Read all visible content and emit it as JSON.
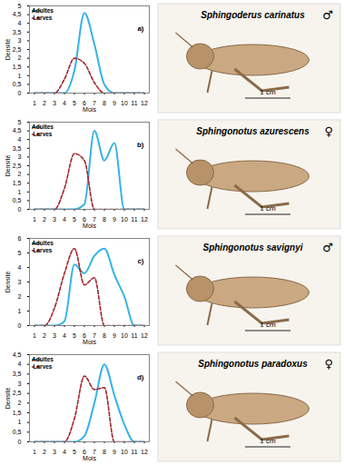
{
  "chart_data": [
    {
      "type": "line",
      "title": "a)",
      "x_label": "Mois",
      "y_label": "Densité",
      "x": [
        1,
        2,
        3,
        4,
        5,
        6,
        7,
        8,
        9,
        10,
        11,
        12
      ],
      "xlim": [
        0.5,
        12.5
      ],
      "xticks": [
        1,
        2,
        3,
        4,
        5,
        6,
        7,
        8,
        9,
        10,
        11,
        12
      ],
      "ylim": [
        0,
        5
      ],
      "yticks": [
        0,
        {
          "value": 0.5,
          "label": "0,5"
        },
        1,
        {
          "value": 1.5,
          "label": "1,5"
        },
        2,
        {
          "value": 2.5,
          "label": "2,5"
        },
        3,
        {
          "value": 3.5,
          "label": "3,5"
        },
        4,
        {
          "value": 4.5,
          "label": "4,5"
        },
        5
      ],
      "legend": "top-left",
      "series": [
        {
          "name": "Adultes",
          "color": "#35b3e6",
          "line_style": "solid",
          "values": [
            0,
            0,
            0,
            0,
            1.3,
            4.6,
            2.8,
            0.5,
            0,
            0,
            0,
            0
          ]
        },
        {
          "name": "Larves",
          "color": "#a3232b",
          "line_style": "dashed",
          "values": [
            0,
            0,
            0,
            0.8,
            2,
            1.7,
            0.6,
            0,
            0,
            0,
            0,
            0
          ]
        }
      ],
      "image": {
        "species": "Sphingoderus carinatus",
        "sex": "♂",
        "scale_label": "1 cm"
      }
    },
    {
      "type": "line",
      "title": "b)",
      "x_label": "Mois",
      "y_label": "Densité",
      "x": [
        1,
        2,
        3,
        4,
        5,
        6,
        7,
        8,
        9,
        10,
        11,
        12
      ],
      "xlim": [
        0.5,
        12.5
      ],
      "xticks": [
        1,
        2,
        3,
        4,
        5,
        6,
        7,
        8,
        9,
        10,
        11,
        12
      ],
      "ylim": [
        0,
        5
      ],
      "yticks": [
        0,
        {
          "value": 0.5,
          "label": "0,5"
        },
        1,
        {
          "value": 1.5,
          "label": "1,5"
        },
        2,
        {
          "value": 2.5,
          "label": "2,5"
        },
        3,
        {
          "value": 3.5,
          "label": "3,5"
        },
        4,
        {
          "value": 4.5,
          "label": "4,5"
        },
        5
      ],
      "legend": "top-left",
      "series": [
        {
          "name": "Adultes",
          "color": "#35b3e6",
          "line_style": "solid",
          "values": [
            0,
            0,
            0,
            0,
            0,
            0.3,
            4.5,
            2.8,
            3.8,
            0,
            0,
            0
          ]
        },
        {
          "name": "Larves",
          "color": "#a3232b",
          "line_style": "dashed",
          "values": [
            0,
            0,
            0,
            1.2,
            3.2,
            2.8,
            0,
            0,
            0,
            0,
            0,
            0
          ]
        }
      ],
      "image": {
        "species": "Sphingonotus azurescens",
        "sex": "♀",
        "scale_label": "1 cm"
      }
    },
    {
      "type": "line",
      "title": "c)",
      "x_label": "Mois",
      "y_label": "Densité",
      "x": [
        1,
        2,
        3,
        4,
        5,
        6,
        7,
        8,
        9,
        10,
        11,
        12
      ],
      "xlim": [
        0.5,
        12.5
      ],
      "xticks": [
        1,
        2,
        3,
        4,
        5,
        6,
        7,
        8,
        9,
        10,
        11,
        12
      ],
      "ylim": [
        0,
        6
      ],
      "yticks": [
        0,
        1,
        2,
        3,
        4,
        5,
        6
      ],
      "legend": "top-left",
      "series": [
        {
          "name": "Adultes",
          "color": "#35b3e6",
          "line_style": "solid",
          "values": [
            0,
            0,
            0,
            0.3,
            4.2,
            3.6,
            4.8,
            5.3,
            3.5,
            2,
            0,
            0
          ]
        },
        {
          "name": "Larves",
          "color": "#a3232b",
          "line_style": "dashed",
          "values": [
            0,
            0,
            1.2,
            3.6,
            5.3,
            2.8,
            3.3,
            0,
            0,
            0,
            0,
            0
          ]
        }
      ],
      "image": {
        "species": "Sphingonotus savignyi",
        "sex": "♂",
        "scale_label": "1 cm"
      }
    },
    {
      "type": "line",
      "title": "d)",
      "x_label": "Mois",
      "y_label": "Densité",
      "x": [
        1,
        2,
        3,
        4,
        5,
        6,
        7,
        8,
        9,
        10,
        11,
        12
      ],
      "xlim": [
        0.5,
        12.5
      ],
      "xticks": [
        1,
        2,
        3,
        4,
        5,
        6,
        7,
        8,
        9,
        10,
        11,
        12
      ],
      "ylim": [
        0,
        4.5
      ],
      "yticks": [
        0,
        {
          "value": 0.5,
          "label": "0,5"
        },
        1,
        {
          "value": 1.5,
          "label": "1,5"
        },
        2,
        {
          "value": 2.5,
          "label": "2,5"
        },
        3,
        {
          "value": 3.5,
          "label": "3,5"
        },
        4,
        {
          "value": 4.5,
          "label": "4,5"
        }
      ],
      "legend": "top-left",
      "series": [
        {
          "name": "Adultes",
          "color": "#35b3e6",
          "line_style": "solid",
          "values": [
            0,
            0,
            0,
            0,
            0,
            0.3,
            2,
            4,
            2.4,
            0.9,
            0,
            0
          ]
        },
        {
          "name": "Larves",
          "color": "#a3232b",
          "line_style": "dashed",
          "values": [
            0,
            0,
            0,
            0,
            1.2,
            3.4,
            2.7,
            2.8,
            0,
            0,
            0,
            0
          ]
        }
      ],
      "image": {
        "species": "Sphingonotus paradoxus",
        "sex": "♀",
        "scale_label": "1 cm"
      }
    }
  ]
}
